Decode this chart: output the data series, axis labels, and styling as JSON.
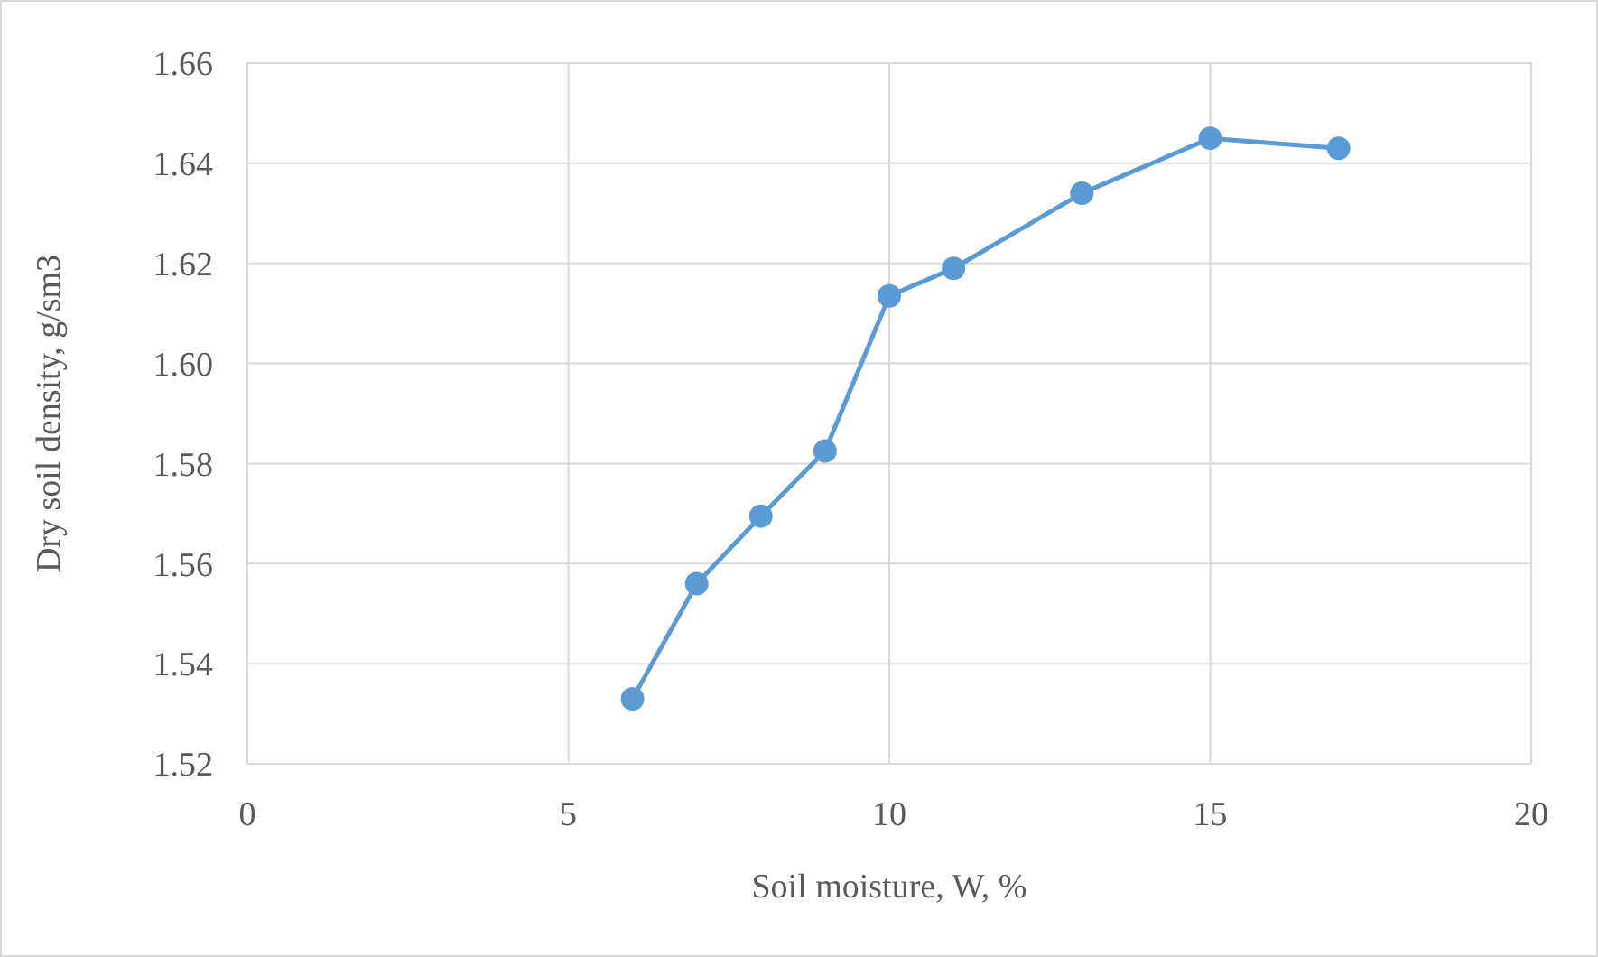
{
  "chart_data": {
    "type": "line",
    "xlabel": "Soil moisture, W, %",
    "ylabel": "Dry soil density, g/sm3",
    "x": [
      6,
      7,
      8,
      9,
      10,
      11,
      13,
      15,
      17
    ],
    "series": [
      {
        "color": "#5b9bd5",
        "values": [
          1.533,
          1.556,
          1.5695,
          1.5825,
          1.6135,
          1.619,
          1.634,
          1.645,
          1.643
        ]
      }
    ],
    "xlim": [
      0,
      20
    ],
    "xticks": [
      0,
      5,
      10,
      15,
      20
    ],
    "ylim": [
      1.52,
      1.66
    ],
    "yticks": [
      {
        "value": 1.52,
        "label": "1.52"
      },
      {
        "value": 1.54,
        "label": "1.54"
      },
      {
        "value": 1.56,
        "label": "1.56"
      },
      {
        "value": 1.58,
        "label": "1.58"
      },
      {
        "value": 1.6,
        "label": "1.60"
      },
      {
        "value": 1.62,
        "label": "1.62"
      },
      {
        "value": 1.64,
        "label": "1.64"
      },
      {
        "value": 1.66,
        "label": "1.66"
      }
    ],
    "grid": true,
    "marker": "circle",
    "line_style": "solid"
  }
}
